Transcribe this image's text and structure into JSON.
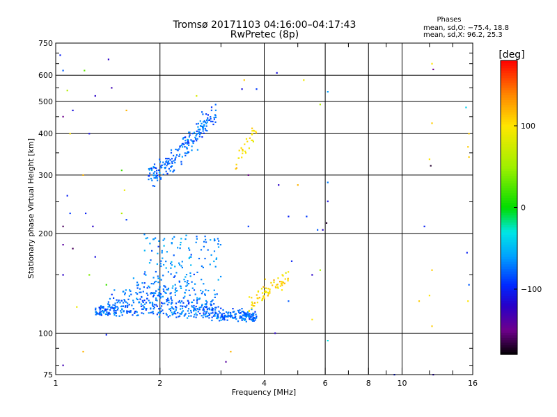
{
  "title_line1": "Tromsø 20171103 04:16:00–04:17:43",
  "title_line2": "RwPretec (8p)",
  "annotation": {
    "heading": "Phases",
    "line1": "mean, sd,O: −75.4, 18.8",
    "line2": "mean, sd,X:  96.2, 25.3"
  },
  "colorbar": {
    "unit": "[deg]",
    "ticks": [
      "100",
      "0",
      "−100"
    ],
    "tick_values": [
      100,
      0,
      -100
    ],
    "range": [
      -180,
      180
    ]
  },
  "chart_data": {
    "type": "scatter",
    "xlabel": "Frequency [MHz]",
    "ylabel": "Stationary phase Virtual Height [km]",
    "xscale": "log",
    "yscale": "log",
    "xlim": [
      1,
      16
    ],
    "ylim": [
      75,
      750
    ],
    "x_ticks": [
      1,
      2,
      4,
      6,
      8,
      10,
      16
    ],
    "y_ticks": [
      75,
      100,
      200,
      300,
      400,
      500,
      600,
      750
    ],
    "grid": true,
    "color_by": "phase_deg",
    "clusters": [
      {
        "trace": "O-lower",
        "x_range": [
          1.3,
          3.8
        ],
        "y_range": [
          100,
          175
        ],
        "phase_mean": -75,
        "phase_sd": 19,
        "n": 620
      },
      {
        "trace": "O-lower-upper",
        "x_range": [
          1.8,
          3.0
        ],
        "y_range": [
          130,
          200
        ],
        "phase_mean": -65,
        "phase_sd": 18,
        "n": 140
      },
      {
        "trace": "O-upper",
        "x_range": [
          1.85,
          2.9
        ],
        "y_range": [
          285,
          490
        ],
        "phase_mean": -75,
        "phase_sd": 18,
        "n": 210
      },
      {
        "trace": "X-upper",
        "x_range": [
          3.3,
          3.8
        ],
        "y_range": [
          310,
          420
        ],
        "phase_mean": 100,
        "phase_sd": 20,
        "n": 30
      },
      {
        "trace": "X-lower",
        "x_range": [
          3.6,
          4.7
        ],
        "y_range": [
          112,
          165
        ],
        "phase_mean": 105,
        "phase_sd": 20,
        "n": 70
      }
    ],
    "noise": [
      [
        1.03,
        690,
        -100
      ],
      [
        1.05,
        620,
        -80
      ],
      [
        1.08,
        540,
        60
      ],
      [
        1.12,
        470,
        -110
      ],
      [
        1.21,
        620,
        30
      ],
      [
        1.42,
        670,
        -120
      ],
      [
        1.45,
        550,
        -130
      ],
      [
        1.6,
        470,
        120
      ],
      [
        1.05,
        450,
        -150
      ],
      [
        1.1,
        400,
        100
      ],
      [
        1.25,
        400,
        -110
      ],
      [
        1.3,
        520,
        -120
      ],
      [
        1.55,
        310,
        20
      ],
      [
        1.58,
        270,
        90
      ],
      [
        1.2,
        300,
        120
      ],
      [
        1.08,
        260,
        -100
      ],
      [
        1.1,
        230,
        -90
      ],
      [
        1.05,
        210,
        -160
      ],
      [
        1.22,
        230,
        -100
      ],
      [
        1.28,
        210,
        -120
      ],
      [
        1.55,
        230,
        60
      ],
      [
        1.6,
        220,
        -90
      ],
      [
        1.05,
        185,
        -140
      ],
      [
        1.12,
        180,
        -160
      ],
      [
        1.3,
        170,
        -110
      ],
      [
        1.25,
        150,
        40
      ],
      [
        1.4,
        140,
        20
      ],
      [
        1.05,
        150,
        -120
      ],
      [
        1.15,
        120,
        90
      ],
      [
        1.05,
        80,
        -130
      ],
      [
        1.2,
        88,
        120
      ],
      [
        1.4,
        99,
        -100
      ],
      [
        2.55,
        520,
        80
      ],
      [
        3.45,
        545,
        -110
      ],
      [
        3.5,
        580,
        110
      ],
      [
        3.8,
        545,
        -90
      ],
      [
        4.35,
        610,
        -110
      ],
      [
        5.2,
        580,
        90
      ],
      [
        6.1,
        535,
        -60
      ],
      [
        5.8,
        490,
        60
      ],
      [
        3.6,
        300,
        -150
      ],
      [
        4.4,
        280,
        -120
      ],
      [
        4.7,
        225,
        -100
      ],
      [
        5.3,
        225,
        -90
      ],
      [
        5.7,
        205,
        -80
      ],
      [
        6.05,
        215,
        -170
      ],
      [
        6.1,
        250,
        -110
      ],
      [
        5.9,
        205,
        -120
      ],
      [
        3.6,
        210,
        -90
      ],
      [
        5.0,
        280,
        120
      ],
      [
        4.8,
        165,
        -100
      ],
      [
        5.5,
        150,
        -120
      ],
      [
        5.8,
        155,
        50
      ],
      [
        4.5,
        135,
        100
      ],
      [
        4.7,
        125,
        -80
      ],
      [
        5.5,
        110,
        100
      ],
      [
        6.1,
        95,
        -30
      ],
      [
        4.3,
        100,
        -120
      ],
      [
        3.2,
        88,
        120
      ],
      [
        3.1,
        82,
        -140
      ],
      [
        12.2,
        650,
        100
      ],
      [
        12.3,
        625,
        -150
      ],
      [
        12.1,
        320,
        -170
      ],
      [
        12.0,
        335,
        100
      ],
      [
        11.6,
        210,
        -100
      ],
      [
        12.2,
        430,
        110
      ],
      [
        15.3,
        480,
        -40
      ],
      [
        15.6,
        400,
        110
      ],
      [
        15.5,
        365,
        110
      ],
      [
        15.6,
        340,
        110
      ],
      [
        15.4,
        175,
        -100
      ],
      [
        15.6,
        140,
        -80
      ],
      [
        15.5,
        125,
        100
      ],
      [
        12.2,
        155,
        110
      ],
      [
        12.0,
        130,
        100
      ],
      [
        12.2,
        105,
        110
      ],
      [
        12.3,
        75,
        -120
      ],
      [
        11.2,
        125,
        110
      ],
      [
        6.1,
        285,
        -70
      ],
      [
        9.5,
        75,
        -100
      ]
    ]
  }
}
